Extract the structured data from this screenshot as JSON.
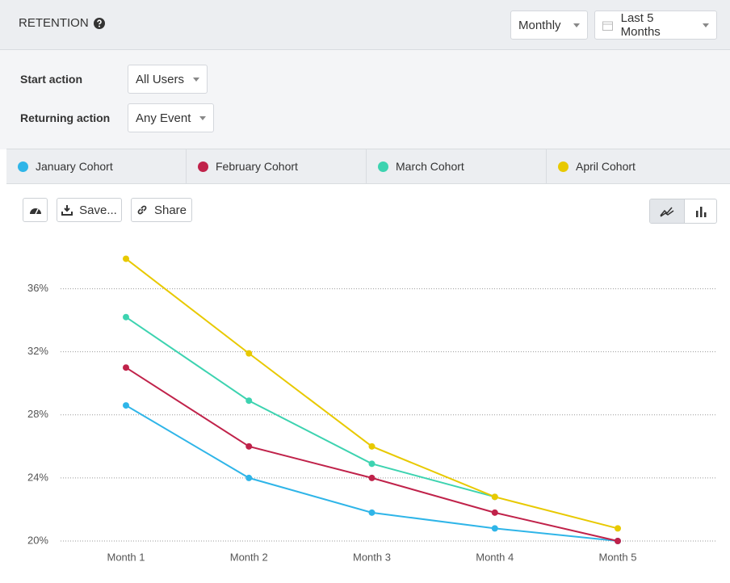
{
  "header": {
    "title": "RETENTION",
    "interval": "Monthly",
    "range": "Last 5 Months"
  },
  "filters": {
    "start_label": "Start action",
    "start_value": "All Users",
    "returning_label": "Returning action",
    "returning_value": "Any Event"
  },
  "toolbar": {
    "save": "Save...",
    "share": "Share"
  },
  "chart_data": {
    "type": "line",
    "categories": [
      "Month 1",
      "Month 2",
      "Month 3",
      "Month 4",
      "Month 5"
    ],
    "series": [
      {
        "name": "January Cohort",
        "color": "#2fb5e8",
        "values": [
          28.6,
          24.0,
          21.8,
          20.8,
          20.0
        ]
      },
      {
        "name": "February Cohort",
        "color": "#c0224a",
        "values": [
          31.0,
          26.0,
          24.0,
          21.8,
          20.0
        ]
      },
      {
        "name": "March Cohort",
        "color": "#3dd3b0",
        "values": [
          34.2,
          28.9,
          24.9,
          22.8,
          null
        ]
      },
      {
        "name": "April Cohort",
        "color": "#e8c900",
        "values": [
          37.9,
          31.9,
          26.0,
          22.8,
          20.8
        ]
      }
    ],
    "ylim": [
      20,
      39
    ],
    "yticks": [
      {
        "value": 20,
        "label": "20%"
      },
      {
        "value": 24,
        "label": "24%"
      },
      {
        "value": 28,
        "label": "28%"
      },
      {
        "value": 32,
        "label": "32%"
      },
      {
        "value": 36,
        "label": "36%"
      }
    ],
    "grid": true
  }
}
